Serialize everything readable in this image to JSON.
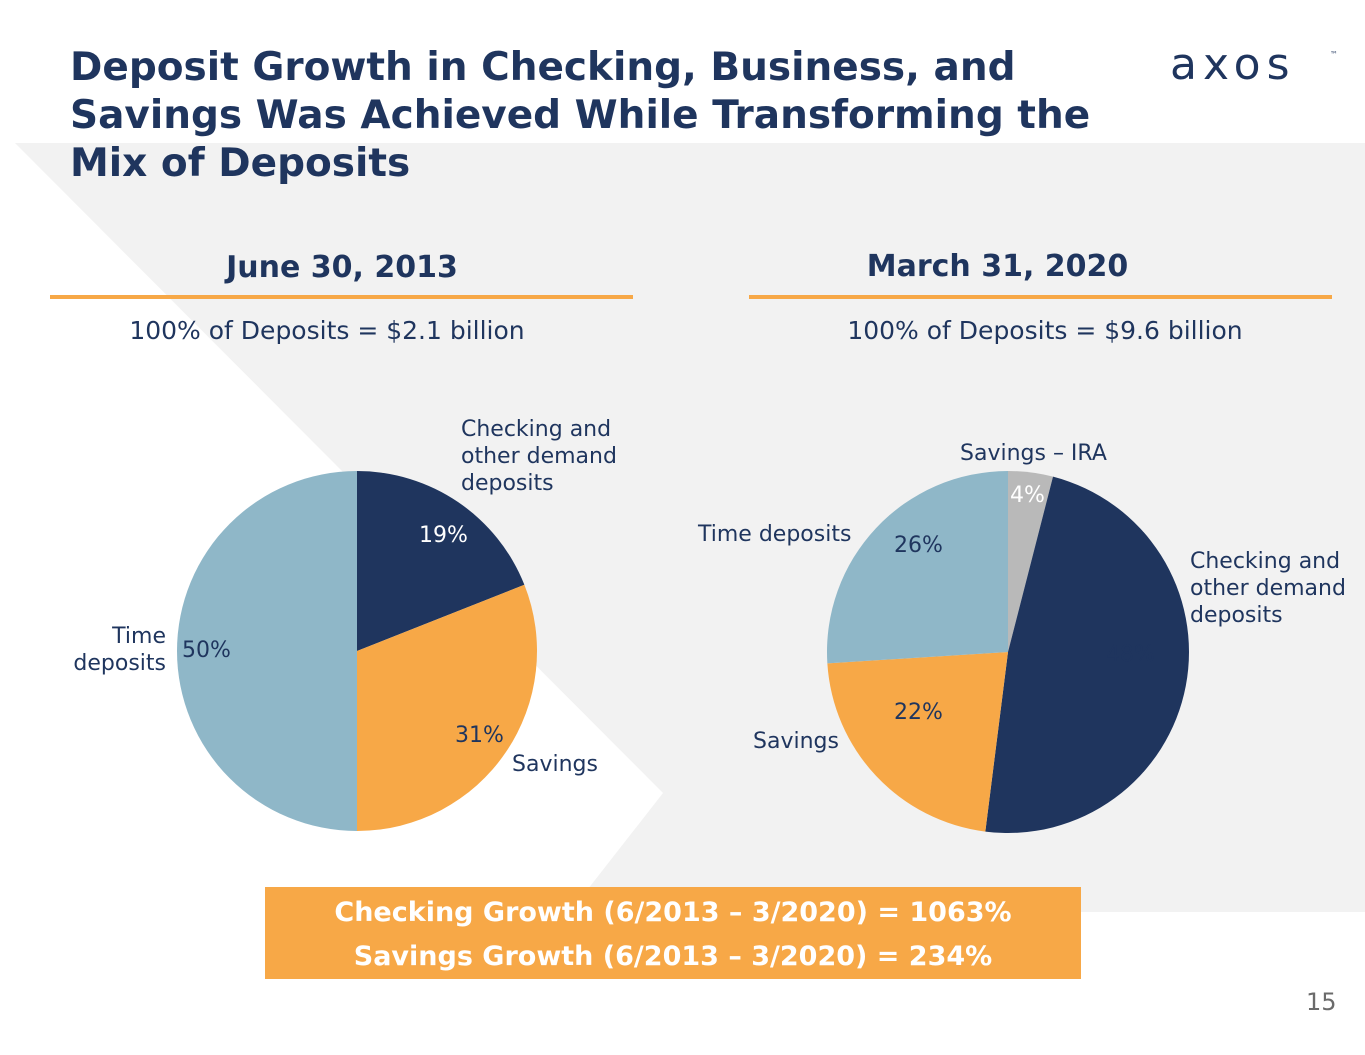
{
  "slide": {
    "title": "Deposit Growth in Checking, Business, and Savings Was Achieved While Transforming the Mix of Deposits",
    "logo_text": "axos",
    "logo_tm": "™",
    "page_number": "15"
  },
  "colors": {
    "navy": "#1f355e",
    "orange": "#f7a847",
    "lightblue": "#8fb7c8",
    "gray": "#b9b9b9",
    "background_panel": "#f2f2f2"
  },
  "left": {
    "heading": "June 30, 2013",
    "subheading": "100% of Deposits = $2.1 billion",
    "labels": {
      "checking": "Checking and other demand deposits",
      "savings": "Savings",
      "time": "Time deposits"
    },
    "pcts": {
      "checking": "19%",
      "savings": "31%",
      "time": "50%"
    }
  },
  "right": {
    "heading": "March 31, 2020",
    "subheading": "100% of Deposits = $9.6 billion",
    "labels": {
      "ira": "Savings – IRA",
      "checking": "Checking and other demand deposits",
      "savings": "Savings",
      "time": "Time deposits"
    },
    "pcts": {
      "ira": "4%",
      "checking": "48%",
      "savings": "22%",
      "time": "26%"
    }
  },
  "growth": {
    "checking": "Checking Growth (6/2013 – 3/2020) = 1063%",
    "savings": "Savings Growth (6/2013 – 3/2020) = 234%"
  },
  "chart_data": [
    {
      "type": "pie",
      "title": "June 30, 2013",
      "subtitle": "100% of Deposits = $2.1 billion",
      "categories": [
        "Checking and other demand deposits",
        "Savings",
        "Time deposits"
      ],
      "values": [
        19,
        31,
        50
      ],
      "colors": [
        "#1f355e",
        "#f7a847",
        "#8fb7c8"
      ]
    },
    {
      "type": "pie",
      "title": "March 31, 2020",
      "subtitle": "100% of Deposits = $9.6 billion",
      "categories": [
        "Savings – IRA",
        "Checking and other demand deposits",
        "Savings",
        "Time deposits"
      ],
      "values": [
        4,
        48,
        22,
        26
      ],
      "colors": [
        "#b9b9b9",
        "#1f355e",
        "#f7a847",
        "#8fb7c8"
      ]
    }
  ]
}
